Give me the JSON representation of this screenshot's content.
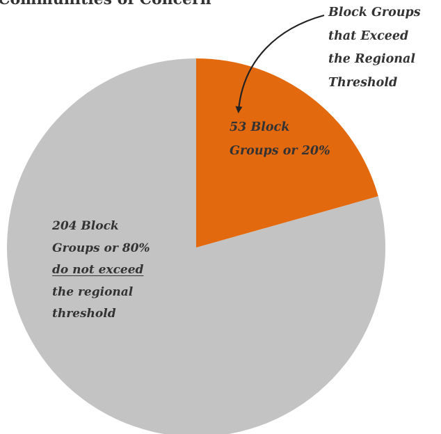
{
  "chart_data": {
    "type": "pie",
    "title": "Communities of Concern",
    "slices": [
      {
        "label": "Block Groups that Exceed the Regional Threshold",
        "value": 53,
        "percent": 20,
        "color": "#e3690e"
      },
      {
        "label": "Block Groups that do not exceed the regional threshold",
        "value": 204,
        "percent": 80,
        "color": "#c3c3c3"
      }
    ],
    "data_labels": {
      "orange": [
        "53 Block",
        "Groups or 20%"
      ],
      "gray": [
        "204 Block",
        "Groups or 80%",
        "do not exceed",
        "the regional",
        "threshold"
      ]
    },
    "callout": [
      "Block Groups",
      "that Exceed",
      "the Regional",
      "Threshold"
    ]
  }
}
